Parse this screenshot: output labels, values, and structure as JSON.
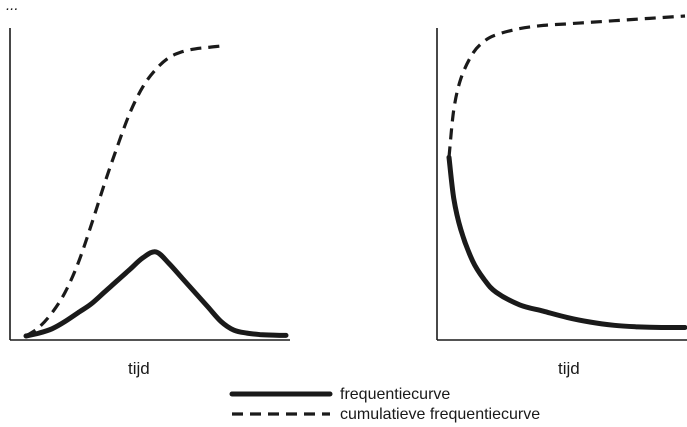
{
  "header_fragment": "...",
  "chart_data": [
    {
      "type": "line",
      "xlabel": "tijd",
      "ylabel": "",
      "grid": false,
      "series": [
        {
          "name": "frequentiecurve",
          "style": "solid",
          "x": [
            0,
            5,
            10,
            15,
            20,
            25,
            30,
            35,
            40,
            45,
            50,
            55,
            60,
            65,
            70,
            75,
            80,
            85,
            90,
            95,
            100
          ],
          "y": [
            0,
            1,
            2.5,
            5,
            8,
            11,
            15,
            19,
            23,
            27,
            29,
            25,
            20,
            15,
            10,
            5,
            2,
            1,
            0.5,
            0.3,
            0.2
          ]
        },
        {
          "name": "cumulatieve frequentiecurve",
          "style": "dashed",
          "x": [
            0,
            5,
            10,
            15,
            20,
            25,
            30,
            35,
            40,
            45,
            50,
            55,
            60,
            65,
            70,
            75
          ],
          "y": [
            0,
            3,
            8,
            15,
            25,
            38,
            52,
            65,
            77,
            86,
            92,
            96,
            98,
            99,
            99.5,
            100
          ]
        }
      ]
    },
    {
      "type": "line",
      "xlabel": "tijd",
      "ylabel": "",
      "grid": false,
      "series": [
        {
          "name": "frequentiecurve",
          "style": "solid",
          "x": [
            0,
            2,
            5,
            10,
            15,
            20,
            30,
            40,
            50,
            60,
            70,
            80,
            90,
            100
          ],
          "y": [
            55,
            42,
            32,
            22,
            16,
            12,
            8,
            6,
            4,
            2.5,
            1.5,
            1,
            0.8,
            0.8
          ]
        },
        {
          "name": "cumulatieve frequentiecurve",
          "style": "dashed",
          "x": [
            0,
            2,
            5,
            10,
            15,
            20,
            30,
            40,
            50,
            60,
            70,
            80,
            90,
            100
          ],
          "y": [
            55,
            70,
            80,
            88,
            92,
            94,
            96,
            97,
            97.5,
            98,
            98.5,
            99,
            99.5,
            100
          ]
        }
      ]
    }
  ],
  "legend": [
    {
      "style": "solid",
      "label": "frequentiecurve"
    },
    {
      "style": "dashed",
      "label": "cumulatieve frequentiecurve"
    }
  ],
  "colors": {
    "ink": "#1a1a1a",
    "background": "#ffffff"
  }
}
